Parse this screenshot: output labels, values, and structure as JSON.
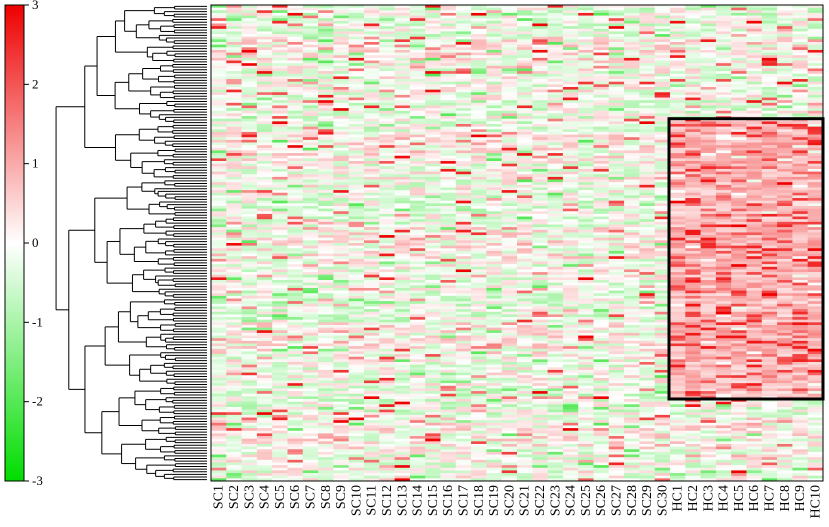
{
  "chart_data": {
    "type": "heatmap",
    "title": "",
    "xlabel": "",
    "ylabel": "",
    "columns": [
      "SC1",
      "SC2",
      "SC3",
      "SC4",
      "SC5",
      "SC6",
      "SC7",
      "SC8",
      "SC9",
      "SC10",
      "SC11",
      "SC12",
      "SC13",
      "SC14",
      "SC15",
      "SC16",
      "SC17",
      "SC18",
      "SC19",
      "SC20",
      "SC21",
      "SC22",
      "SC23",
      "SC24",
      "SC25",
      "SC26",
      "SC27",
      "SC28",
      "SC29",
      "SC30",
      "HC1",
      "HC2",
      "HC3",
      "HC4",
      "HC5",
      "HC6",
      "HC7",
      "HC8",
      "HC9",
      "HC10"
    ],
    "color_scale": {
      "min": -3,
      "max": 3,
      "ticks": [
        "3",
        "2",
        "1",
        "0",
        "-1",
        "-2",
        "-3"
      ],
      "colors": {
        "low": "#00dd00",
        "mid": "#ffffff",
        "high": "#ee0000"
      }
    },
    "highlight": {
      "columns_from": "HC1",
      "columns_to": "HC10",
      "row_fraction_start": 0.24,
      "row_fraction_end": 0.82
    },
    "row_count": 180,
    "dendrogram": "row clustering tree (left)",
    "grid": false
  }
}
